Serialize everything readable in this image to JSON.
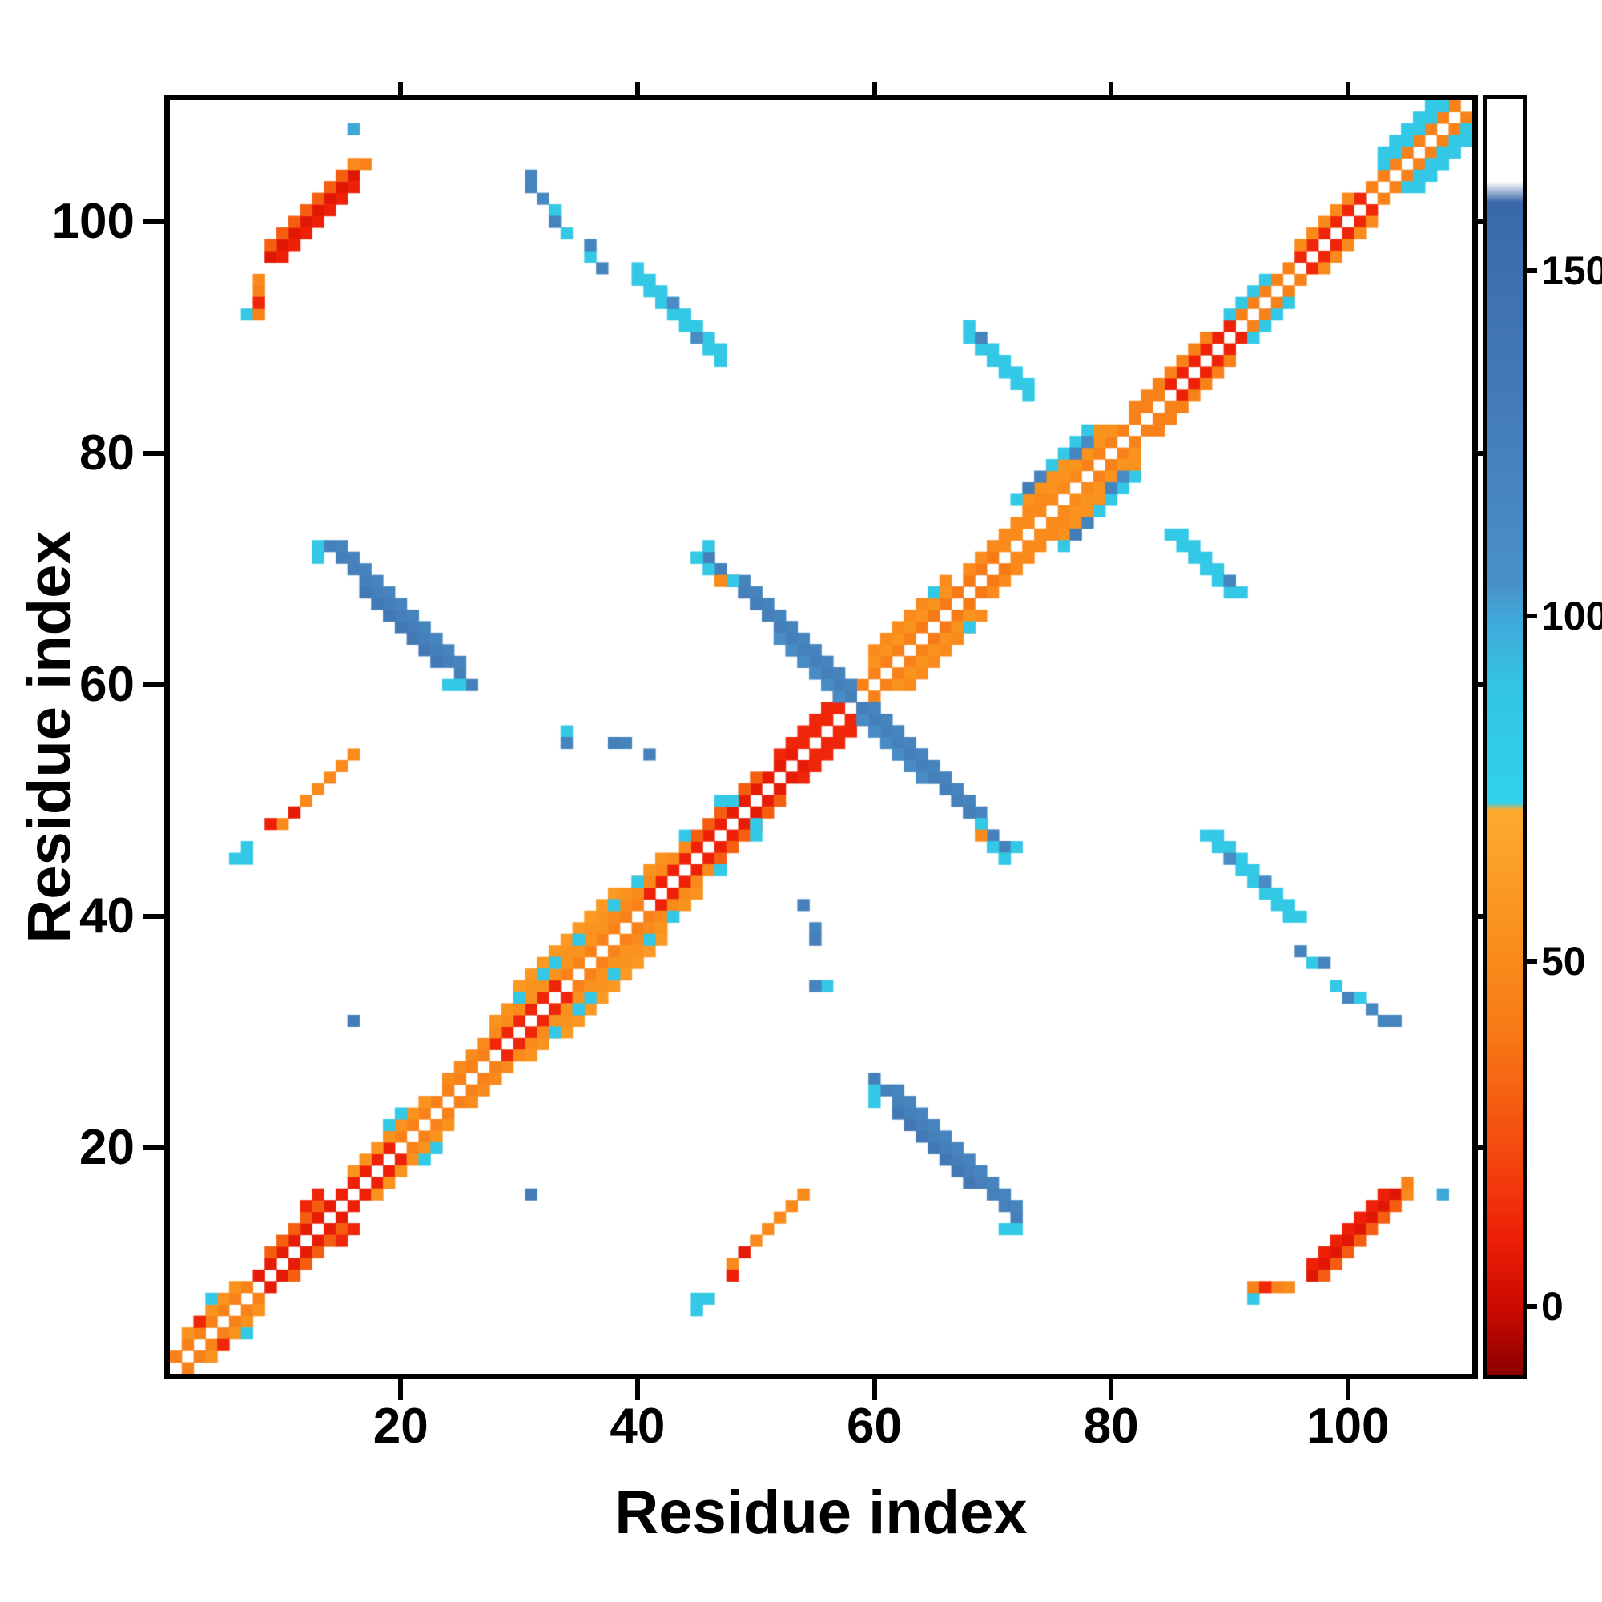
{
  "chart_data": {
    "type": "heatmap",
    "title": "",
    "xlabel": "Residue index",
    "ylabel": "Residue index",
    "n_residues": 110,
    "x_range": [
      1,
      110
    ],
    "y_range": [
      1,
      110
    ],
    "x_ticks": [
      20,
      40,
      60,
      80,
      100
    ],
    "y_ticks": [
      20,
      40,
      60,
      80,
      100
    ],
    "symmetric": true,
    "background_value": null,
    "colorbar": {
      "ticks": [
        0,
        50,
        100,
        150
      ],
      "vmin": -10,
      "vmax": 175
    },
    "colormap": [
      [
        -10,
        "#8b0000"
      ],
      [
        0,
        "#cc0a00"
      ],
      [
        10,
        "#ee2008"
      ],
      [
        25,
        "#f4500f"
      ],
      [
        40,
        "#f77a16"
      ],
      [
        55,
        "#fa921e"
      ],
      [
        72,
        "#fcaa30"
      ],
      [
        73,
        "#2fd2ec"
      ],
      [
        90,
        "#33c4e4"
      ],
      [
        100,
        "#40a8d8"
      ],
      [
        105,
        "#4a90c8"
      ],
      [
        125,
        "#4580ba"
      ],
      [
        150,
        "#3d6fae"
      ],
      [
        160,
        "#3a68a8"
      ],
      [
        163,
        "#ffffff"
      ],
      [
        175,
        "#ffffff"
      ]
    ],
    "features": [
      {
        "t": "diag",
        "i": [
          1,
          7
        ],
        "off": 1,
        "v": 45
      },
      {
        "t": "diag",
        "i": [
          8,
          14
        ],
        "off": 1,
        "v": 8
      },
      {
        "t": "diag",
        "i": [
          15,
          19
        ],
        "off": 1,
        "v": 10
      },
      {
        "t": "diag",
        "i": [
          20,
          27
        ],
        "off": 1,
        "v": 45
      },
      {
        "t": "diag",
        "i": [
          28,
          33
        ],
        "off": 1,
        "v": 12
      },
      {
        "t": "diag",
        "i": [
          34,
          40
        ],
        "off": 1,
        "v": 45
      },
      {
        "t": "diag",
        "i": [
          41,
          47
        ],
        "off": 1,
        "v": 10
      },
      {
        "t": "diag",
        "i": [
          48,
          53
        ],
        "off": 1,
        "v": 8
      },
      {
        "t": "diag",
        "i": [
          54,
          58
        ],
        "off": 1,
        "v": 12
      },
      {
        "t": "diag",
        "i": [
          59,
          63
        ],
        "off": 1,
        "v": 45
      },
      {
        "t": "diag",
        "i": [
          64,
          70
        ],
        "off": 1,
        "v": 40
      },
      {
        "t": "diag",
        "i": [
          71,
          77
        ],
        "off": 1,
        "v": 50
      },
      {
        "t": "diag",
        "i": [
          78,
          84
        ],
        "off": 1,
        "v": 45
      },
      {
        "t": "diag",
        "i": [
          85,
          90
        ],
        "off": 1,
        "v": 10
      },
      {
        "t": "diag",
        "i": [
          91,
          95
        ],
        "off": 1,
        "v": 45
      },
      {
        "t": "diag",
        "i": [
          96,
          101
        ],
        "off": 1,
        "v": 12
      },
      {
        "t": "diag",
        "i": [
          102,
          109
        ],
        "off": 1,
        "v": 45
      },
      {
        "t": "diag",
        "i": [
          2,
          6
        ],
        "off": 2,
        "v": 55
      },
      {
        "t": "diag",
        "i": [
          9,
          13
        ],
        "off": 2,
        "v": 30
      },
      {
        "t": "diag",
        "i": [
          16,
          22
        ],
        "off": 2,
        "v": 55
      },
      {
        "t": "diag",
        "i": [
          24,
          30
        ],
        "off": 2,
        "v": 50
      },
      {
        "t": "diag",
        "i": [
          31,
          37
        ],
        "off": 2,
        "v": 55
      },
      {
        "t": "diag",
        "i": [
          38,
          44
        ],
        "off": 2,
        "v": 50
      },
      {
        "t": "diag",
        "i": [
          45,
          50
        ],
        "off": 2,
        "v": 30
      },
      {
        "t": "diag",
        "i": [
          52,
          57
        ],
        "off": 2,
        "v": 12
      },
      {
        "t": "diag",
        "i": [
          60,
          66
        ],
        "off": 2,
        "v": 55
      },
      {
        "t": "diag",
        "i": [
          68,
          74
        ],
        "off": 2,
        "v": 50
      },
      {
        "t": "diag",
        "i": [
          75,
          80
        ],
        "off": 2,
        "v": 55
      },
      {
        "t": "diag",
        "i": [
          82,
          88
        ],
        "off": 2,
        "v": 45
      },
      {
        "t": "diag",
        "i": [
          90,
          93
        ],
        "off": 2,
        "v": 85
      },
      {
        "t": "diag",
        "i": [
          96,
          100
        ],
        "off": 2,
        "v": 50
      },
      {
        "t": "diag",
        "i": [
          103,
          108
        ],
        "off": 2,
        "v": 85
      },
      {
        "t": "diag",
        "i": [
          28,
          42
        ],
        "off": 3,
        "v": 55
      },
      {
        "t": "diag",
        "i": [
          30,
          38
        ],
        "off": 4,
        "v": 60
      },
      {
        "t": "diag",
        "i": [
          60,
          66
        ],
        "off": 3,
        "v": 50
      },
      {
        "t": "diag",
        "i": [
          73,
          79
        ],
        "off": 3,
        "v": 55
      },
      {
        "t": "diag",
        "i": [
          75,
          78
        ],
        "off": 4,
        "v": 85
      },
      {
        "t": "diag",
        "i": [
          103,
          106
        ],
        "off": 3,
        "v": 85
      },
      {
        "t": "diag",
        "i": [
          9,
          16
        ],
        "off": 88,
        "v": 6
      },
      {
        "t": "diag",
        "i": [
          10,
          16
        ],
        "off": 87,
        "v": 10
      },
      {
        "t": "diag",
        "i": [
          9,
          15
        ],
        "off": 89,
        "v": 30
      },
      {
        "t": "diag",
        "i": [
          13,
          16
        ],
        "off": 38,
        "v": 50
      },
      {
        "t": "anti",
        "i": [
          46,
          71
        ],
        "sum": 117,
        "v": 125
      },
      {
        "t": "anti",
        "i": [
          49,
          68
        ],
        "sum": 118,
        "v": 120
      },
      {
        "t": "anti",
        "i": [
          52,
          64
        ],
        "sum": 116,
        "v": 110
      },
      {
        "t": "anti",
        "i": [
          14,
          26
        ],
        "sum": 86,
        "v": 125
      },
      {
        "t": "anti",
        "i": [
          15,
          25
        ],
        "sum": 87,
        "v": 120
      },
      {
        "t": "anti",
        "i": [
          17,
          23
        ],
        "sum": 85,
        "v": 135
      },
      {
        "t": "anti",
        "i": [
          40,
          47
        ],
        "sum": 135,
        "v": 85,
        "w": 2
      },
      {
        "t": "anti",
        "i": [
          68,
          73
        ],
        "sum": 158,
        "v": 85,
        "w": 2
      },
      {
        "t": "dots",
        "v": 85,
        "p": [
          [
            4,
            7
          ],
          [
            19,
            22
          ],
          [
            20,
            23
          ],
          [
            30,
            33
          ],
          [
            32,
            35
          ],
          [
            33,
            36
          ],
          [
            35,
            38
          ],
          [
            38,
            41
          ],
          [
            40,
            43
          ],
          [
            44,
            47
          ],
          [
            47,
            50
          ],
          [
            48,
            50
          ],
          [
            65,
            68
          ],
          [
            72,
            76
          ],
          [
            6,
            45
          ],
          [
            7,
            45
          ],
          [
            7,
            46
          ],
          [
            7,
            92
          ],
          [
            13,
            71
          ],
          [
            13,
            72
          ],
          [
            24,
            60
          ],
          [
            25,
            60
          ],
          [
            33,
            101
          ],
          [
            34,
            99
          ],
          [
            36,
            97
          ],
          [
            34,
            56
          ],
          [
            45,
            71
          ],
          [
            46,
            72
          ],
          [
            69,
            48
          ],
          [
            70,
            46
          ],
          [
            71,
            45
          ],
          [
            104,
            107
          ],
          [
            105,
            108
          ],
          [
            106,
            108
          ],
          [
            106,
            109
          ],
          [
            107,
            110
          ],
          [
            108,
            110
          ]
        ]
      },
      {
        "t": "dots",
        "v": 100,
        "p": [
          [
            16,
            108
          ]
        ]
      },
      {
        "t": "dots",
        "v": 115,
        "p": [
          [
            32,
            102
          ]
        ]
      },
      {
        "t": "dots",
        "v": 110,
        "p": [
          [
            78,
            81
          ],
          [
            43,
            93
          ],
          [
            45,
            90
          ]
        ]
      },
      {
        "t": "dots",
        "v": 120,
        "p": [
          [
            31,
            103
          ],
          [
            31,
            104
          ],
          [
            33,
            100
          ],
          [
            36,
            98
          ],
          [
            37,
            96
          ],
          [
            34,
            55
          ],
          [
            39,
            55
          ],
          [
            69,
            90
          ],
          [
            74,
            78
          ],
          [
            77,
            80
          ]
        ]
      },
      {
        "t": "dots",
        "v": 125,
        "p": [
          [
            38,
            55
          ],
          [
            41,
            54
          ]
        ]
      },
      {
        "t": "dots",
        "v": 130,
        "p": [
          [
            31,
            16
          ],
          [
            73,
            77
          ]
        ]
      },
      {
        "t": "dots",
        "v": 50,
        "p": [
          [
            8,
            95
          ],
          [
            16,
            105
          ],
          [
            10,
            48
          ],
          [
            12,
            50
          ],
          [
            69,
            47
          ]
        ]
      },
      {
        "t": "dots",
        "v": 45,
        "p": [
          [
            8,
            92
          ],
          [
            8,
            94
          ],
          [
            17,
            105
          ]
        ]
      },
      {
        "t": "dots",
        "v": 12,
        "p": [
          [
            3,
            5
          ],
          [
            8,
            93
          ],
          [
            12,
            15
          ],
          [
            13,
            16
          ]
        ]
      },
      {
        "t": "dots",
        "v": 10,
        "p": [
          [
            9,
            48
          ]
        ]
      },
      {
        "t": "dots",
        "v": 8,
        "p": [
          [
            11,
            49
          ]
        ]
      }
    ]
  }
}
